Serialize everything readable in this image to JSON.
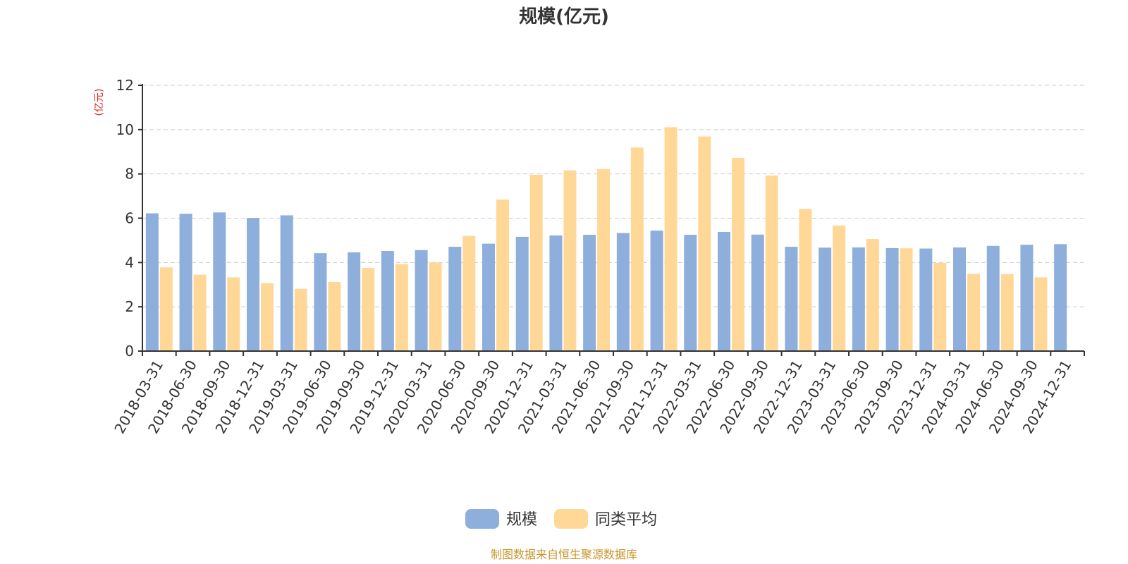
{
  "chart_data": {
    "type": "bar",
    "title": "规模(亿元)",
    "ylabel": "(亿元)",
    "ylim": [
      0,
      12
    ],
    "yticks": [
      0,
      2,
      4,
      6,
      8,
      10,
      12
    ],
    "grid": true,
    "legend_position": "bottom-center",
    "categories": [
      "2018-03-31",
      "2018-06-30",
      "2018-09-30",
      "2018-12-31",
      "2019-03-31",
      "2019-06-30",
      "2019-09-30",
      "2019-12-31",
      "2020-03-31",
      "2020-06-30",
      "2020-09-30",
      "2020-12-31",
      "2021-03-31",
      "2021-06-30",
      "2021-09-30",
      "2021-12-31",
      "2022-03-31",
      "2022-06-30",
      "2022-09-30",
      "2022-12-31",
      "2023-03-31",
      "2023-06-30",
      "2023-09-30",
      "2023-12-31",
      "2024-03-31",
      "2024-06-30",
      "2024-09-30",
      "2024-12-31"
    ],
    "series": [
      {
        "name": "规模",
        "color": "#8eaedc",
        "values": [
          6.22,
          6.2,
          6.26,
          6.01,
          6.13,
          4.42,
          4.46,
          4.52,
          4.56,
          4.71,
          4.85,
          5.16,
          5.22,
          5.25,
          5.33,
          5.44,
          5.25,
          5.38,
          5.26,
          4.71,
          4.67,
          4.68,
          4.65,
          4.63,
          4.68,
          4.75,
          4.8,
          4.83
        ]
      },
      {
        "name": "同类平均",
        "color": "#ffd898",
        "values": [
          3.78,
          3.45,
          3.33,
          3.07,
          2.81,
          3.12,
          3.76,
          3.93,
          4.0,
          5.2,
          6.84,
          7.96,
          8.16,
          8.22,
          9.19,
          10.11,
          9.69,
          8.72,
          7.93,
          6.42,
          5.67,
          5.06,
          4.64,
          3.98,
          3.49,
          3.48,
          3.33,
          null
        ]
      }
    ]
  },
  "source_text": "制图数据来自恒生聚源数据库",
  "colors": {
    "source_text": "#c8962a",
    "unit_label": "#e0241b",
    "axis": "#333333"
  }
}
